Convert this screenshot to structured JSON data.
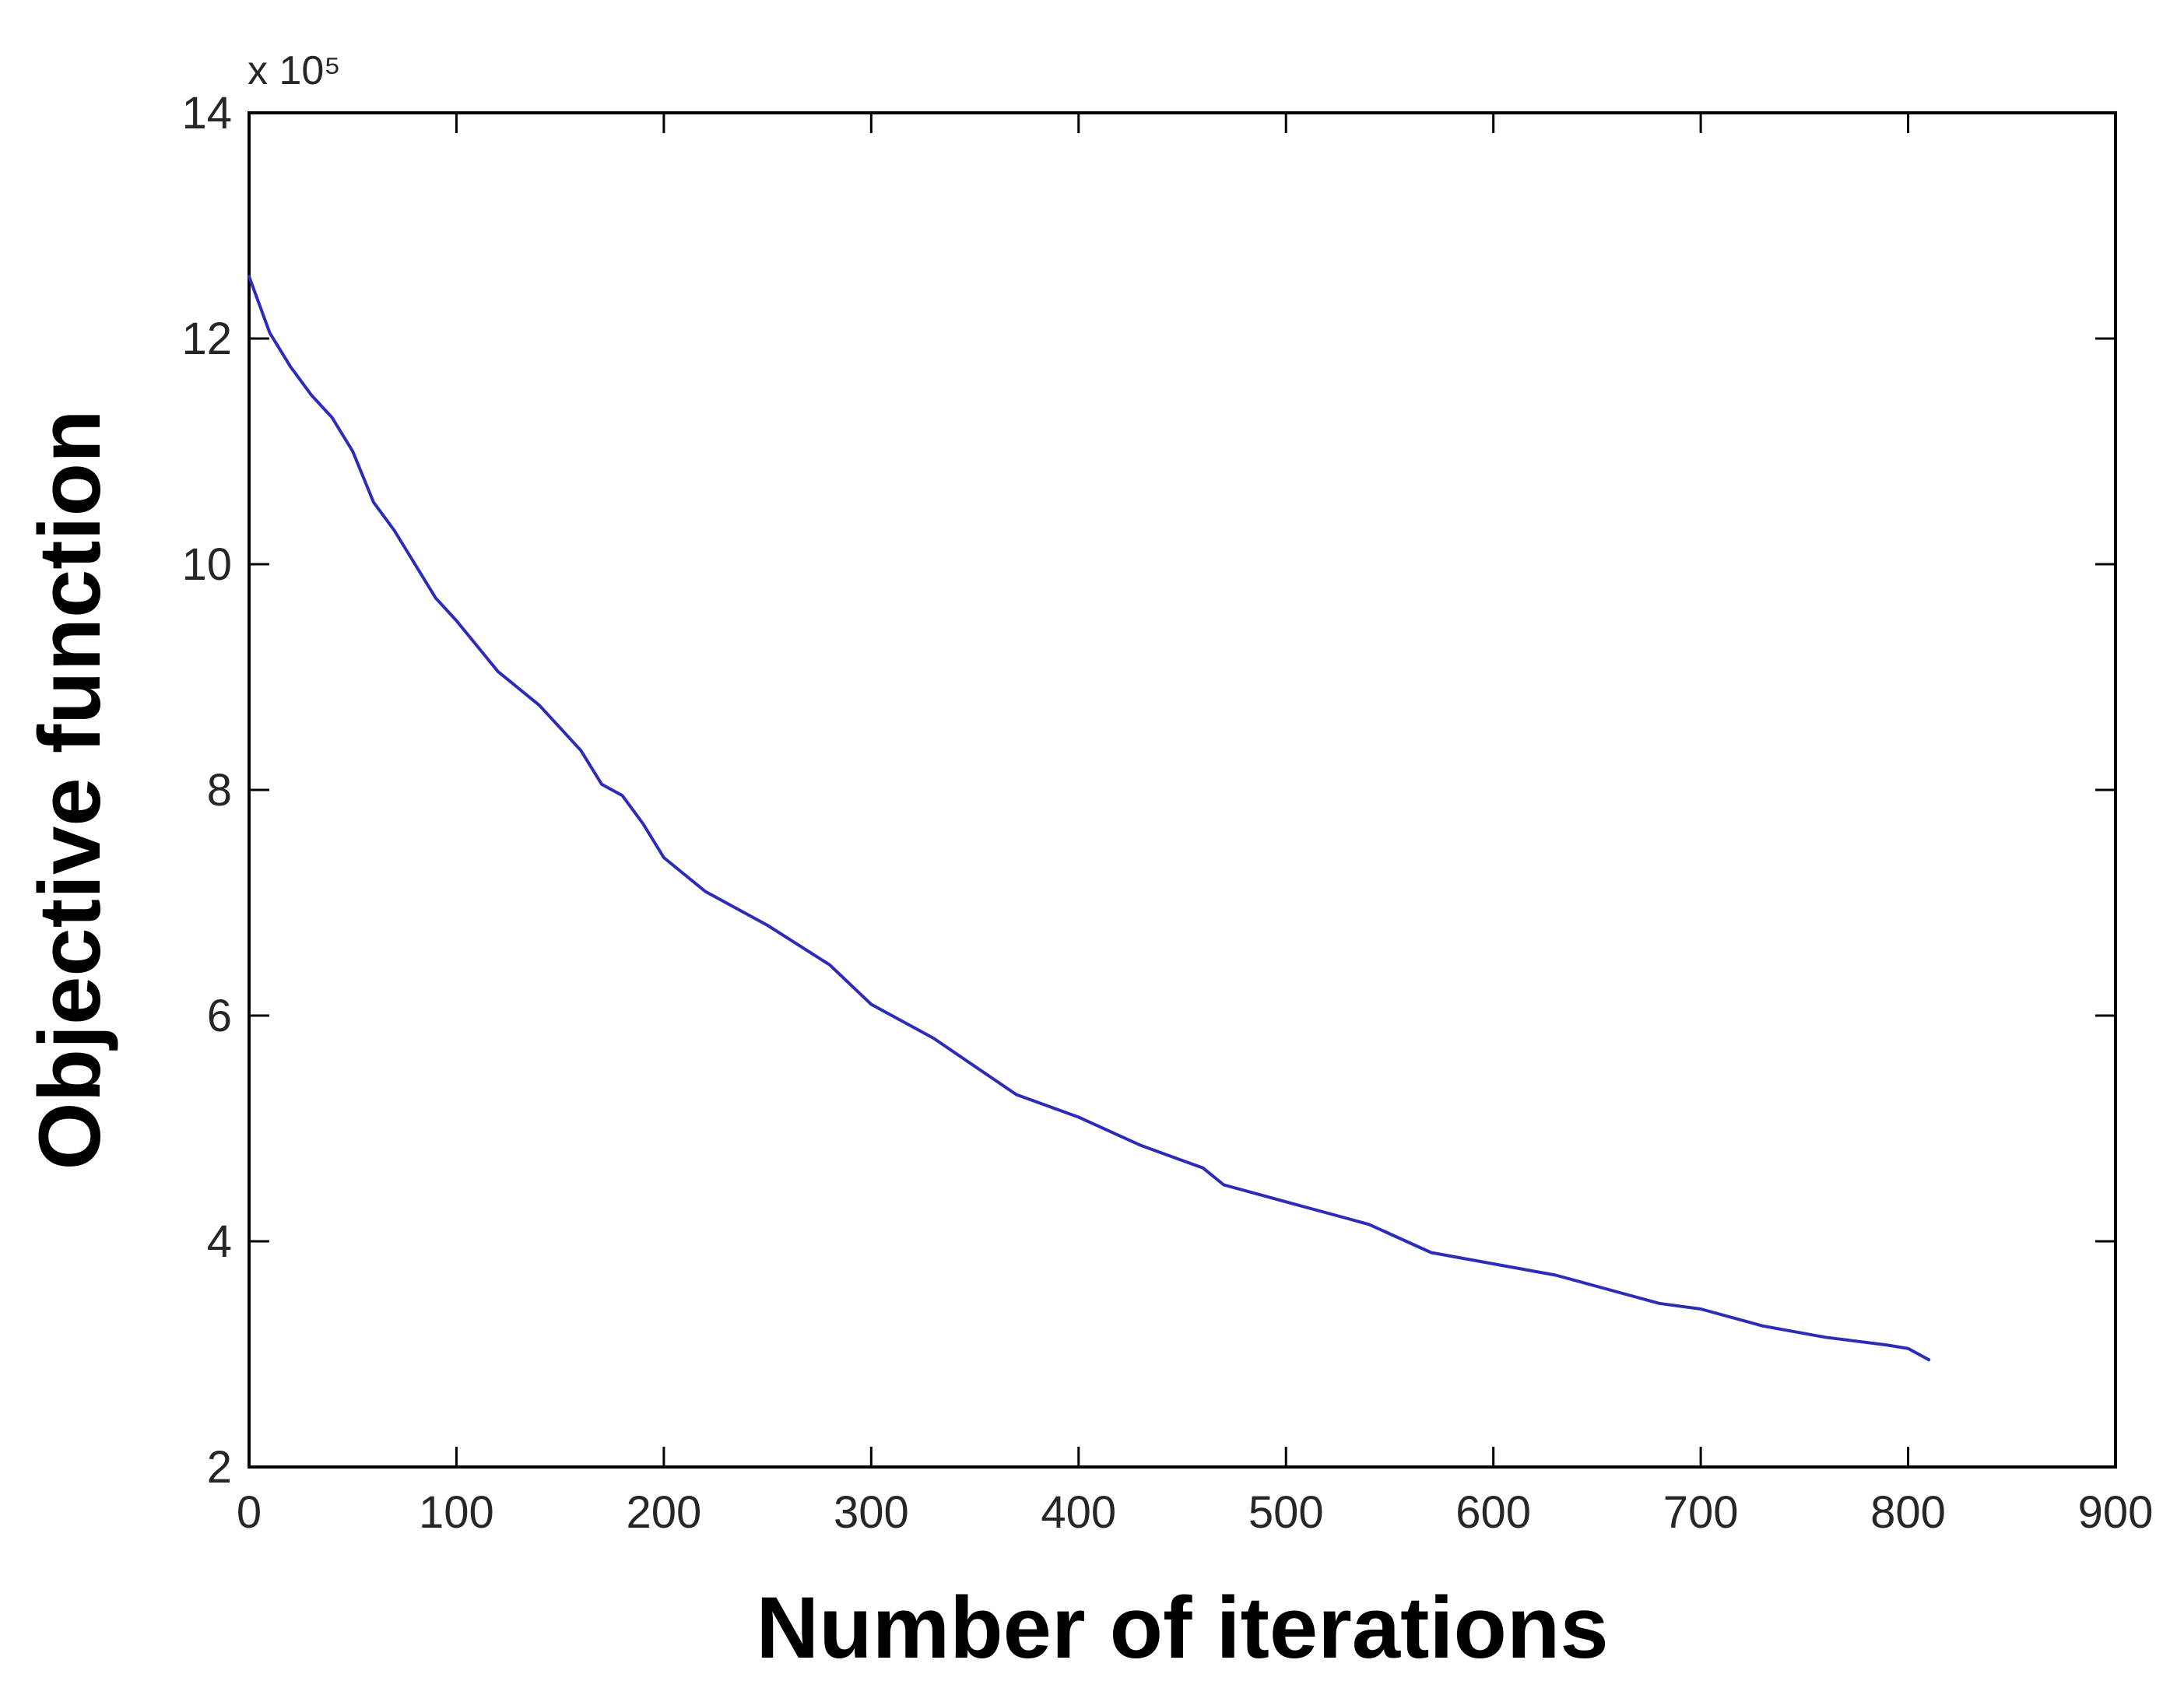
{
  "chart_data": {
    "type": "line",
    "title": "",
    "xlabel": "Number of iterations",
    "ylabel": "Objective function",
    "xlim": [
      0,
      900
    ],
    "ylim": [
      2,
      14
    ],
    "x_ticks": [
      0,
      100,
      200,
      300,
      400,
      500,
      600,
      700,
      800,
      900
    ],
    "y_ticks": [
      2,
      4,
      6,
      8,
      10,
      12,
      14
    ],
    "x_tick_labels": [
      "0",
      "100",
      "200",
      "300",
      "400",
      "500",
      "600",
      "700",
      "800",
      "900"
    ],
    "y_tick_labels": [
      "2",
      "4",
      "6",
      "8",
      "10",
      "12",
      "14"
    ],
    "y_exponent_label": "x 10⁵",
    "grid": false,
    "legend": "none",
    "line_color": "#2c2cb8",
    "series": [
      {
        "x": [
          0,
          10,
          20,
          30,
          40,
          50,
          60,
          70,
          80,
          90,
          100,
          120,
          140,
          160,
          170,
          180,
          190,
          200,
          220,
          250,
          280,
          300,
          330,
          350,
          370,
          400,
          430,
          460,
          470,
          500,
          530,
          540,
          570,
          600,
          630,
          650,
          680,
          700,
          730,
          760,
          790,
          800,
          810
        ],
        "y": [
          12.55,
          12.05,
          11.75,
          11.5,
          11.3,
          11.0,
          10.55,
          10.3,
          10.0,
          9.7,
          9.5,
          9.05,
          8.75,
          8.35,
          8.05,
          7.95,
          7.7,
          7.4,
          7.1,
          6.8,
          6.45,
          6.1,
          5.8,
          5.55,
          5.3,
          5.1,
          4.85,
          4.65,
          4.5,
          4.35,
          4.2,
          4.15,
          3.9,
          3.8,
          3.7,
          3.6,
          3.45,
          3.4,
          3.25,
          3.15,
          3.08,
          3.05,
          2.95
        ]
      }
    ]
  }
}
